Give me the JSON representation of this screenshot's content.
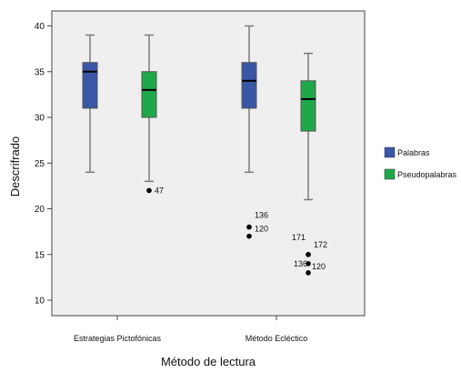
{
  "chart_data": {
    "type": "boxplot",
    "xlabel": "Método de lectura",
    "ylabel": "Descrifrado",
    "ylim": [
      8,
      42
    ],
    "yticks": [
      10,
      15,
      20,
      25,
      30,
      35,
      40
    ],
    "categories": [
      "Estrategias Pictofónicas",
      "Método Ecléctico"
    ],
    "legend_position": "right",
    "series": [
      {
        "name": "Palabras",
        "color": "#3a57a7",
        "boxes": [
          {
            "min": 24,
            "q1": 31,
            "median": 35,
            "q3": 36,
            "max": 39,
            "outliers": []
          },
          {
            "min": 24,
            "q1": 31,
            "median": 34,
            "q3": 36,
            "max": 40,
            "outliers": [
              {
                "value": 18,
                "label": "136"
              },
              {
                "value": 17,
                "label": "120"
              }
            ]
          }
        ]
      },
      {
        "name": "Pseudopalabras",
        "color": "#1fa84a",
        "boxes": [
          {
            "min": 23,
            "q1": 30,
            "median": 33,
            "q3": 35,
            "max": 39,
            "outliers": [
              {
                "value": 22,
                "label": "47"
              }
            ]
          },
          {
            "min": 21,
            "q1": 28.5,
            "median": 32,
            "q3": 34,
            "max": 37,
            "outliers": [
              {
                "value": 15,
                "label": "171"
              },
              {
                "value": 15,
                "label": "172"
              },
              {
                "value": 14,
                "label": "136"
              },
              {
                "value": 13,
                "label": "120"
              }
            ]
          }
        ]
      }
    ]
  }
}
